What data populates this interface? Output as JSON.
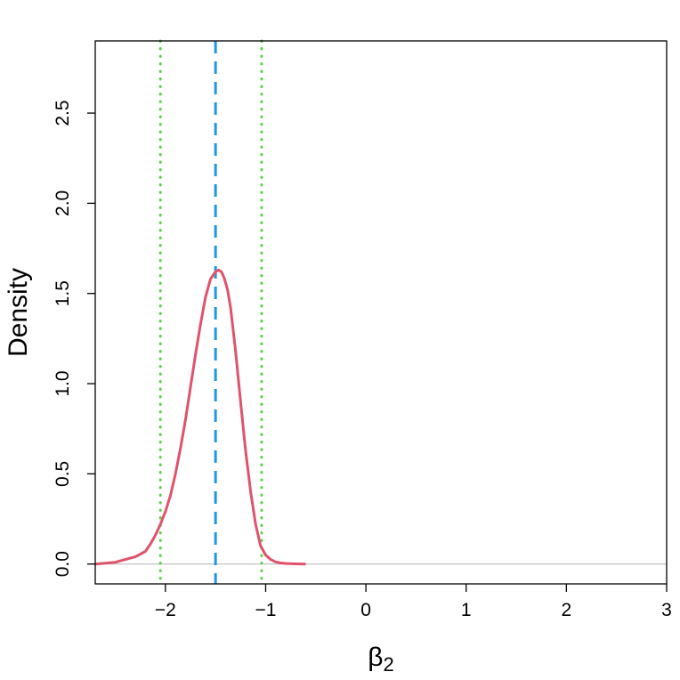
{
  "chart_data": {
    "type": "line",
    "title": "",
    "xlabel": "β",
    "xlabel_subscript": "2",
    "ylabel": "Density",
    "xlim": [
      -2.7,
      3.0
    ],
    "ylim": [
      -0.11,
      2.9
    ],
    "x_ticks": [
      -2,
      -1,
      0,
      1,
      2,
      3
    ],
    "x_tick_labels": [
      "−2",
      "−1",
      "0",
      "1",
      "2",
      "3"
    ],
    "y_ticks": [
      0.0,
      0.5,
      1.0,
      1.5,
      2.0,
      2.5
    ],
    "y_tick_labels": [
      "0.0",
      "0.5",
      "1.0",
      "1.5",
      "2.0",
      "2.5"
    ],
    "grid": false,
    "colors": {
      "density": "#DF536B",
      "mean_line": "#2297E6",
      "interval_lines": "#61D04F",
      "baseline": "#BEBEBE"
    },
    "density_curve": {
      "x": [
        -2.7,
        -2.6,
        -2.5,
        -2.4,
        -2.3,
        -2.2,
        -2.15,
        -2.1,
        -2.05,
        -2.0,
        -1.95,
        -1.9,
        -1.85,
        -1.8,
        -1.75,
        -1.7,
        -1.65,
        -1.6,
        -1.55,
        -1.5,
        -1.47,
        -1.44,
        -1.41,
        -1.38,
        -1.35,
        -1.3,
        -1.25,
        -1.2,
        -1.15,
        -1.1,
        -1.05,
        -1.0,
        -0.95,
        -0.9,
        -0.85,
        -0.8,
        -0.7,
        -0.6
      ],
      "y": [
        0.0,
        0.005,
        0.01,
        0.025,
        0.04,
        0.07,
        0.11,
        0.16,
        0.22,
        0.29,
        0.38,
        0.5,
        0.64,
        0.8,
        0.98,
        1.16,
        1.33,
        1.48,
        1.58,
        1.62,
        1.63,
        1.62,
        1.58,
        1.52,
        1.42,
        1.18,
        0.9,
        0.63,
        0.4,
        0.22,
        0.1,
        0.05,
        0.025,
        0.012,
        0.006,
        0.003,
        0.001,
        0.0
      ]
    },
    "mean_line": {
      "x": -1.5,
      "style": "dashed"
    },
    "interval_lines": {
      "x": [
        -2.05,
        -1.04
      ],
      "style": "dotted"
    },
    "baseline_y": 0.0
  }
}
